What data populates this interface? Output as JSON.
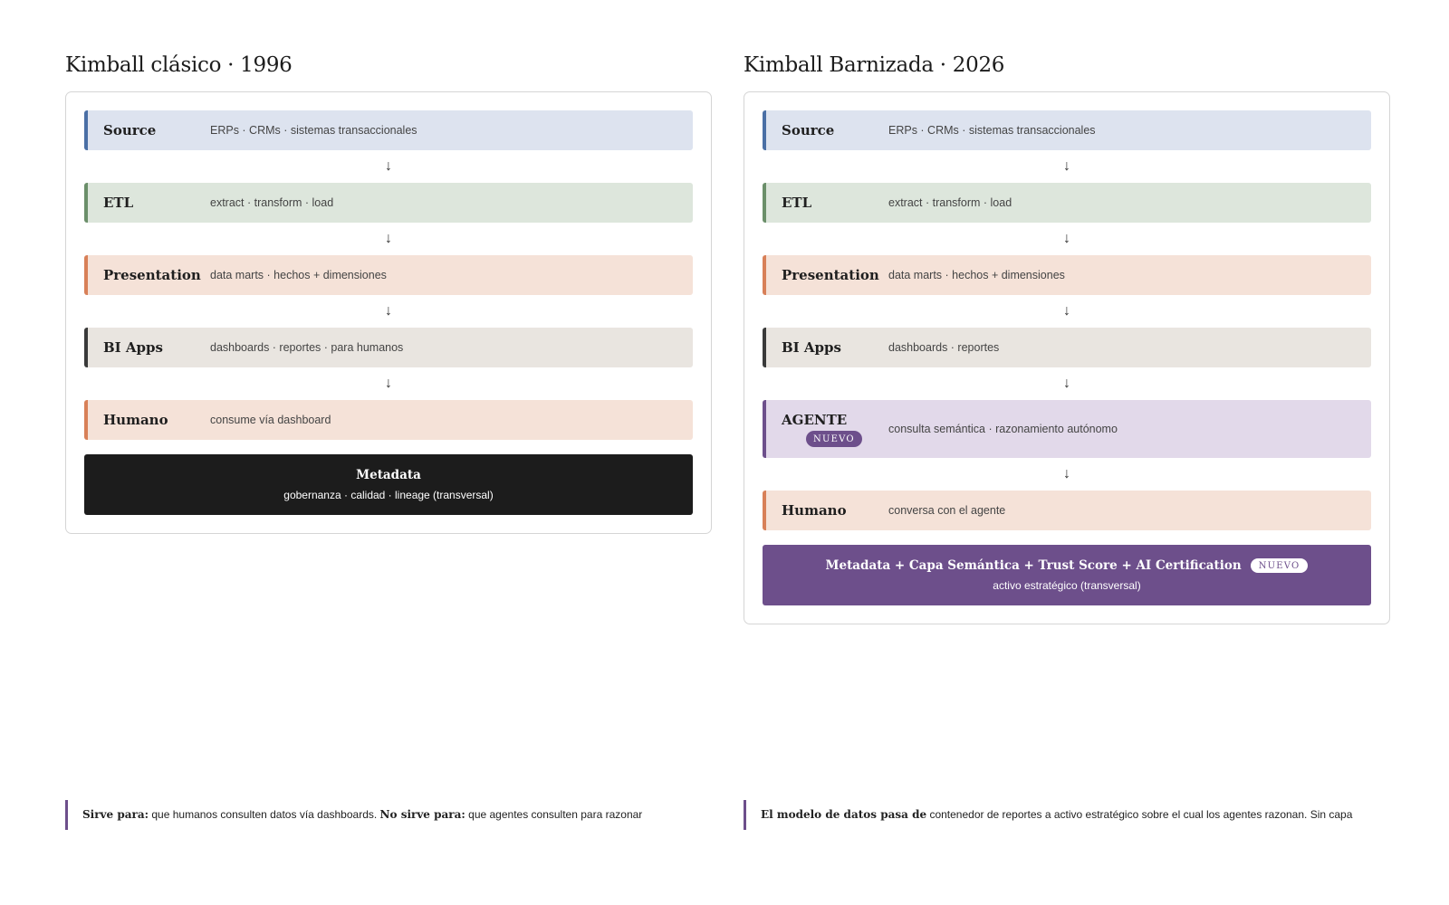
{
  "colors": {
    "source_bg": "#dde3ef",
    "source_border": "#4a6fa5",
    "etl_bg": "#dde6dc",
    "etl_border": "#6b8f6a",
    "presentation_bg": "#f5e2d8",
    "presentation_border": "#d88058",
    "bi_bg": "#e9e5e0",
    "bi_border": "#3a3a3a",
    "agent_bg": "#e2d9ea",
    "agent_border": "#6d4f8b",
    "human_bg": "#f5e2d8",
    "human_border": "#d88058",
    "meta_classic_bg": "#1c1c1c",
    "meta_new_bg": "#6d4f8b"
  },
  "left": {
    "title": "Kimball clásico · 1996",
    "layers": [
      {
        "name": "Source",
        "desc": "ERPs · CRMs · sistemas transaccionales"
      },
      {
        "name": "ETL",
        "desc": "extract · transform · load"
      },
      {
        "name": "Presentation",
        "desc": "data marts · hechos + dimensiones"
      },
      {
        "name": "BI Apps",
        "desc": "dashboards · reportes · para humanos"
      },
      {
        "name": "Humano",
        "desc": "consume vía dashboard"
      }
    ],
    "arrow": "↓",
    "metadata": {
      "title": "Metadata",
      "subtitle": "gobernanza · calidad · lineage (transversal)"
    },
    "note": {
      "b1": "Sirve para:",
      "t1": " que humanos consulten datos vía dashboards. ",
      "b2": "No sirve para:",
      "t2": " que agentes consulten para razonar"
    }
  },
  "right": {
    "title": "Kimball Barnizada · 2026",
    "layers": [
      {
        "name": "Source",
        "desc": "ERPs · CRMs · sistemas transaccionales"
      },
      {
        "name": "ETL",
        "desc": "extract · transform · load"
      },
      {
        "name": "Presentation",
        "desc": "data marts · hechos + dimensiones"
      },
      {
        "name": "BI Apps",
        "desc": "dashboards · reportes"
      },
      {
        "name": "AGENTE",
        "desc": "consulta semántica · razonamiento autónomo",
        "badge": "NUEVO"
      },
      {
        "name": "Humano",
        "desc": "conversa con el agente"
      }
    ],
    "arrow": "↓",
    "metadata": {
      "title": "Metadata + Capa Semántica + Trust Score + AI Certification",
      "badge": "NUEVO",
      "subtitle": "activo estratégico (transversal)"
    },
    "note": {
      "b1": "El modelo de datos pasa de",
      "t1": " contenedor de reportes a activo estratégico sobre el cual los agentes razonan. Sin capa"
    }
  }
}
